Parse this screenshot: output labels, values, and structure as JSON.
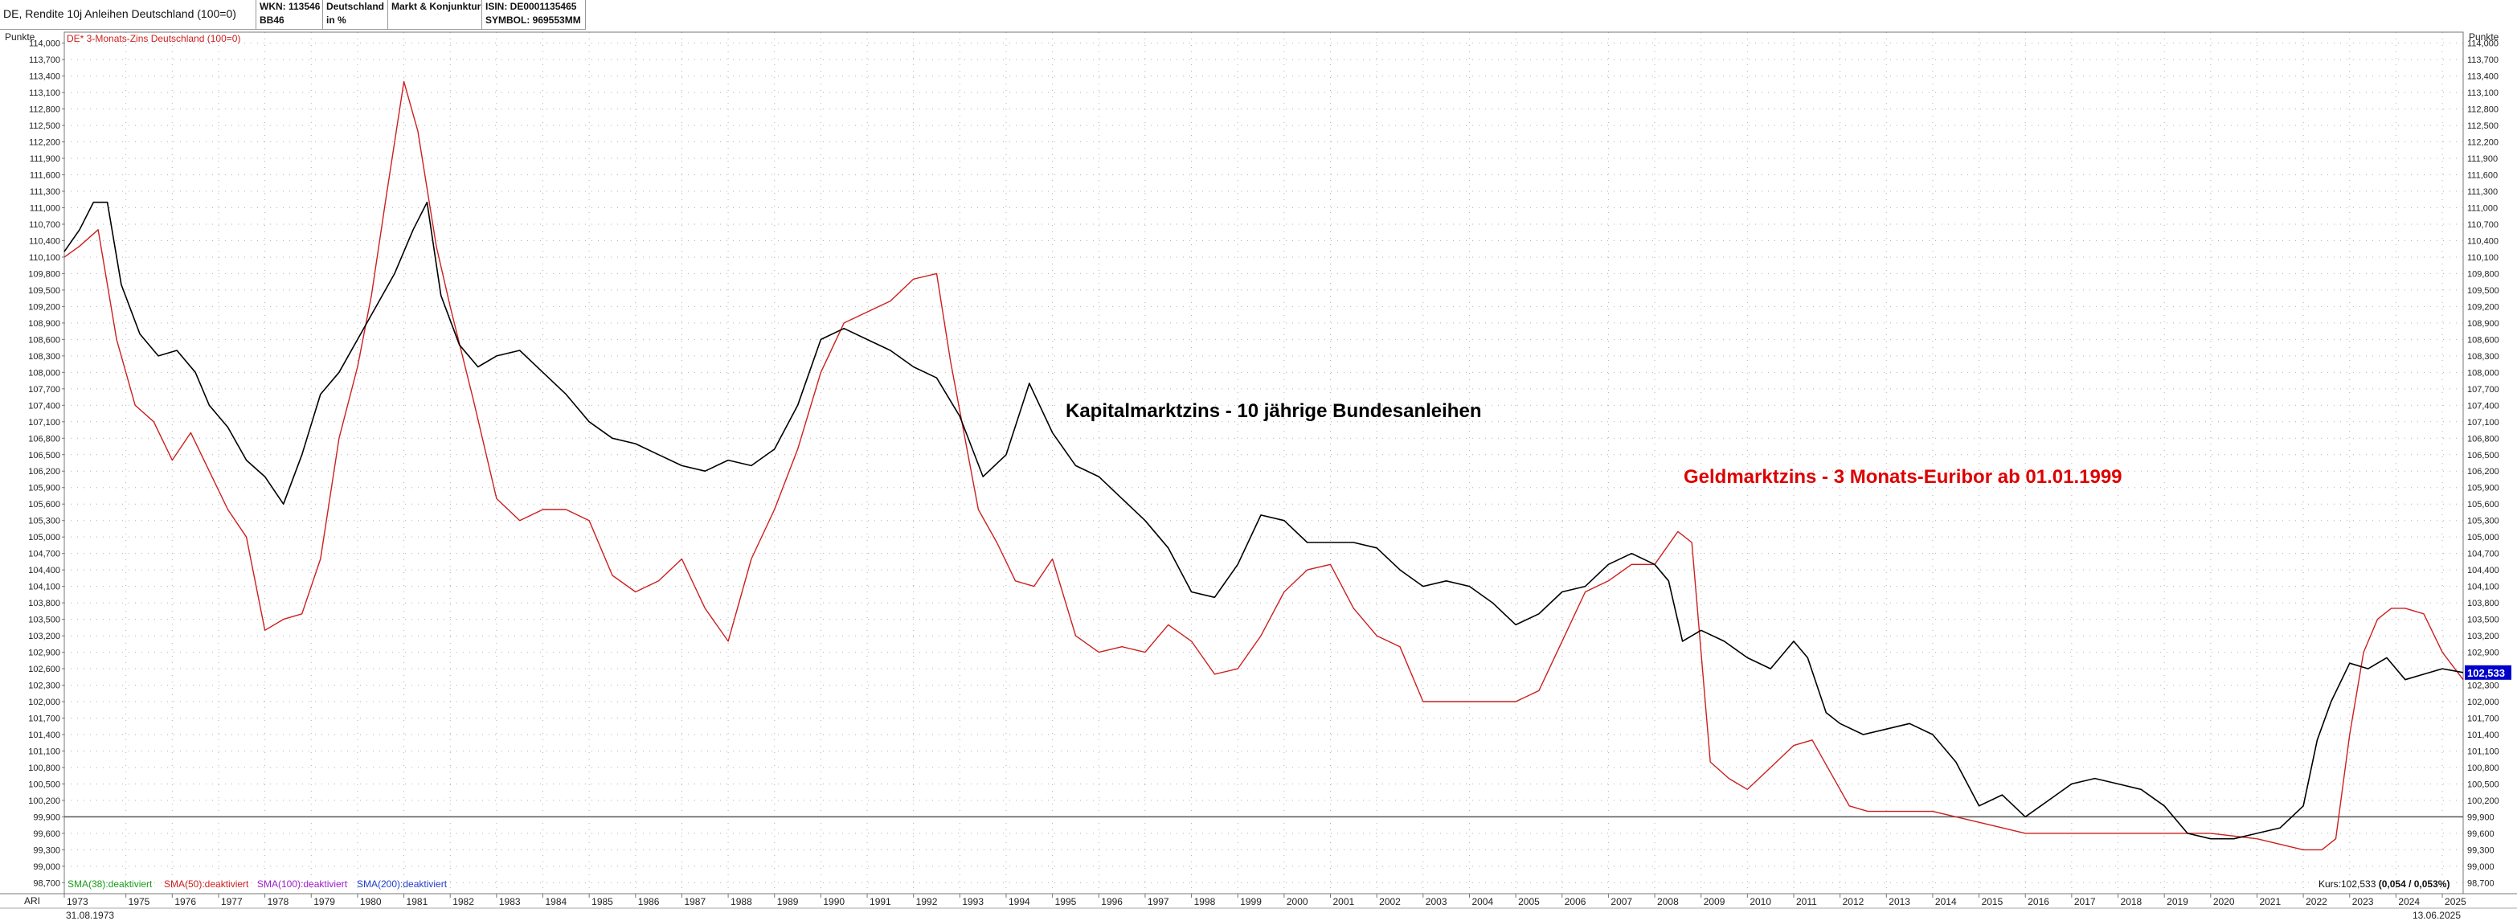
{
  "header": {
    "title": "DE, Rendite 10j Anleihen Deutschland (100=0)",
    "wkn": "WKN: 113546",
    "code": "BB46",
    "country": "Deutschland",
    "unit": "in %",
    "category": "Markt & Konjunktur",
    "isin": "ISIN: DE0001135465",
    "symbol": "SYMBOL: 969553MM"
  },
  "colors": {
    "kapital": "#000000",
    "geld": "#cc1f1f",
    "price_tag_bg": "#0000cc",
    "grid": "#b0b0b0"
  },
  "chart_data": {
    "type": "line",
    "title": "DE, Rendite 10j Anleihen Deutschland (100=0)",
    "ylabel": "Punkte",
    "ylim": [
      98.5,
      114.2
    ],
    "x_range": [
      1973.67,
      2025.45
    ],
    "grid": true,
    "y_ticks": [
      114.0,
      113.7,
      113.4,
      113.1,
      112.8,
      112.5,
      112.2,
      111.9,
      111.6,
      111.3,
      111.0,
      110.7,
      110.4,
      110.1,
      109.8,
      109.5,
      109.2,
      108.9,
      108.6,
      108.3,
      108.0,
      107.7,
      107.4,
      107.1,
      106.8,
      106.5,
      106.2,
      105.9,
      105.6,
      105.3,
      105.0,
      104.7,
      104.4,
      104.1,
      103.8,
      103.5,
      103.2,
      102.9,
      102.6,
      102.3,
      102.0,
      101.7,
      101.4,
      101.1,
      100.8,
      100.5,
      100.2,
      99.9,
      99.6,
      99.3,
      99.0,
      98.7
    ],
    "y_tick_labels": [
      "114,000",
      "113,700",
      "113,400",
      "113,100",
      "112,800",
      "112,500",
      "112,200",
      "111,900",
      "111,600",
      "111,300",
      "111,000",
      "110,700",
      "110,400",
      "110,100",
      "109,800",
      "109,500",
      "109,200",
      "108,900",
      "108,600",
      "108,300",
      "108,000",
      "107,700",
      "107,400",
      "107,100",
      "106,800",
      "106,500",
      "106,200",
      "105,900",
      "105,600",
      "105,300",
      "105,000",
      "104,700",
      "104,400",
      "104,100",
      "103,800",
      "103,500",
      "103,200",
      "102,900",
      "102,600",
      "102,300",
      "102,000",
      "101,700",
      "101,400",
      "101,100",
      "100,800",
      "100,500",
      "100,200",
      "99,900",
      "99,600",
      "99,300",
      "99,000",
      "98,700"
    ],
    "x_ticks": [
      "1973",
      "1975",
      "1976",
      "1977",
      "1978",
      "1979",
      "1980",
      "1981",
      "1982",
      "1983",
      "1984",
      "1985",
      "1986",
      "1987",
      "1988",
      "1989",
      "1990",
      "1991",
      "1992",
      "1993",
      "1994",
      "1995",
      "1996",
      "1997",
      "1998",
      "1999",
      "2000",
      "2001",
      "2002",
      "2003",
      "2004",
      "2005",
      "2006",
      "2007",
      "2008",
      "2009",
      "2010",
      "2011",
      "2012",
      "2013",
      "2014",
      "2015",
      "2016",
      "2017",
      "2018",
      "2019",
      "2020",
      "2021",
      "2022",
      "2023",
      "2024",
      "2025"
    ],
    "reference_line": 99.9,
    "series": [
      {
        "name": "DE, Rendite 10j Anleihen Deutschland (100=0)",
        "color": "#000000",
        "x": [
          1973.67,
          1974.0,
          1974.3,
          1974.6,
          1974.9,
          1975.3,
          1975.7,
          1976.1,
          1976.5,
          1976.8,
          1977.2,
          1977.6,
          1978.0,
          1978.4,
          1978.8,
          1979.2,
          1979.6,
          1980.0,
          1980.4,
          1980.8,
          1981.2,
          1981.5,
          1981.8,
          1982.2,
          1982.6,
          1983.0,
          1983.5,
          1984.0,
          1984.5,
          1985.0,
          1985.5,
          1986.0,
          1986.5,
          1987.0,
          1987.5,
          1988.0,
          1988.5,
          1989.0,
          1989.5,
          1990.0,
          1990.5,
          1991.0,
          1991.5,
          1992.0,
          1992.5,
          1993.0,
          1993.5,
          1994.0,
          1994.5,
          1995.0,
          1995.5,
          1996.0,
          1996.5,
          1997.0,
          1997.5,
          1998.0,
          1998.5,
          1999.0,
          1999.5,
          2000.0,
          2000.5,
          2001.0,
          2001.5,
          2002.0,
          2002.5,
          2003.0,
          2003.5,
          2004.0,
          2004.5,
          2005.0,
          2005.5,
          2006.0,
          2006.5,
          2007.0,
          2007.5,
          2008.0,
          2008.3,
          2008.6,
          2009.0,
          2009.5,
          2010.0,
          2010.5,
          2011.0,
          2011.3,
          2011.7,
          2012.0,
          2012.5,
          2013.0,
          2013.5,
          2014.0,
          2014.5,
          2015.0,
          2015.5,
          2016.0,
          2016.5,
          2017.0,
          2017.5,
          2018.0,
          2018.5,
          2019.0,
          2019.5,
          2020.0,
          2020.5,
          2021.0,
          2021.5,
          2022.0,
          2022.3,
          2022.6,
          2023.0,
          2023.4,
          2023.8,
          2024.2,
          2024.6,
          2025.0,
          2025.45
        ],
        "values": [
          110.2,
          110.6,
          111.1,
          111.1,
          109.6,
          108.7,
          108.3,
          108.4,
          108.0,
          107.4,
          107.0,
          106.4,
          106.1,
          105.6,
          106.5,
          107.6,
          108.0,
          108.6,
          109.2,
          109.8,
          110.6,
          111.1,
          109.4,
          108.5,
          108.1,
          108.3,
          108.4,
          108.0,
          107.6,
          107.1,
          106.8,
          106.7,
          106.5,
          106.3,
          106.2,
          106.4,
          106.3,
          106.6,
          107.4,
          108.6,
          108.8,
          108.6,
          108.4,
          108.1,
          107.9,
          107.2,
          106.1,
          106.5,
          107.8,
          106.9,
          106.3,
          106.1,
          105.7,
          105.3,
          104.8,
          104.0,
          103.9,
          104.5,
          105.4,
          105.3,
          104.9,
          104.9,
          104.9,
          104.8,
          104.4,
          104.1,
          104.2,
          104.1,
          103.8,
          103.4,
          103.6,
          104.0,
          104.1,
          104.5,
          104.7,
          104.5,
          104.2,
          103.1,
          103.3,
          103.1,
          102.8,
          102.6,
          103.1,
          102.8,
          101.8,
          101.6,
          101.4,
          101.5,
          101.6,
          101.4,
          100.9,
          100.1,
          100.3,
          99.9,
          100.2,
          100.5,
          100.6,
          100.5,
          100.4,
          100.1,
          99.6,
          99.5,
          99.5,
          99.6,
          99.7,
          100.1,
          101.3,
          102.0,
          102.7,
          102.6,
          102.8,
          102.4,
          102.5,
          102.6,
          102.53
        ]
      },
      {
        "name": "DE* 3-Monats-Zins Deutschland (100=0)",
        "color": "#cc1f1f",
        "x": [
          1973.67,
          1974.0,
          1974.4,
          1974.8,
          1975.2,
          1975.6,
          1976.0,
          1976.4,
          1976.8,
          1977.2,
          1977.6,
          1978.0,
          1978.4,
          1978.8,
          1979.2,
          1979.6,
          1980.0,
          1980.3,
          1980.6,
          1981.0,
          1981.3,
          1981.7,
          1982.0,
          1982.5,
          1983.0,
          1983.5,
          1984.0,
          1984.5,
          1985.0,
          1985.5,
          1986.0,
          1986.5,
          1987.0,
          1987.5,
          1988.0,
          1988.5,
          1989.0,
          1989.5,
          1990.0,
          1990.5,
          1991.0,
          1991.5,
          1992.0,
          1992.5,
          1992.8,
          1993.0,
          1993.4,
          1993.8,
          1994.2,
          1994.6,
          1995.0,
          1995.5,
          1996.0,
          1996.5,
          1997.0,
          1997.5,
          1998.0,
          1998.5,
          1999.0,
          1999.5,
          2000.0,
          2000.5,
          2001.0,
          2001.5,
          2002.0,
          2002.5,
          2003.0,
          2003.5,
          2004.0,
          2004.5,
          2005.0,
          2005.5,
          2006.0,
          2006.5,
          2007.0,
          2007.5,
          2008.0,
          2008.5,
          2008.8,
          2009.2,
          2009.6,
          2010.0,
          2010.5,
          2011.0,
          2011.4,
          2011.8,
          2012.2,
          2012.6,
          2013.0,
          2014.0,
          2015.0,
          2016.0,
          2017.0,
          2018.0,
          2019.0,
          2020.0,
          2021.0,
          2022.0,
          2022.4,
          2022.7,
          2023.0,
          2023.3,
          2023.6,
          2023.9,
          2024.2,
          2024.6,
          2025.0,
          2025.45
        ],
        "values": [
          110.1,
          110.3,
          110.6,
          108.6,
          107.4,
          107.1,
          106.4,
          106.9,
          106.2,
          105.5,
          105.0,
          103.3,
          103.5,
          103.6,
          104.6,
          106.8,
          108.1,
          109.4,
          111.1,
          113.3,
          112.4,
          110.3,
          109.2,
          107.5,
          105.7,
          105.3,
          105.5,
          105.5,
          105.3,
          104.3,
          104.0,
          104.2,
          104.6,
          103.7,
          103.1,
          104.6,
          105.5,
          106.6,
          108.0,
          108.9,
          109.1,
          109.3,
          109.7,
          109.8,
          108.2,
          107.3,
          105.5,
          104.9,
          104.2,
          104.1,
          104.6,
          103.2,
          102.9,
          103.0,
          102.9,
          103.4,
          103.1,
          102.5,
          102.6,
          103.2,
          104.0,
          104.4,
          104.5,
          103.7,
          103.2,
          103.0,
          102.0,
          102.0,
          102.0,
          102.0,
          102.0,
          102.2,
          103.1,
          104.0,
          104.2,
          104.5,
          104.5,
          105.1,
          104.9,
          100.9,
          100.6,
          100.4,
          100.8,
          101.2,
          101.3,
          100.7,
          100.1,
          100.0,
          100.0,
          100.0,
          99.8,
          99.6,
          99.6,
          99.6,
          99.6,
          99.6,
          99.5,
          99.3,
          99.3,
          99.5,
          101.4,
          102.9,
          103.5,
          103.7,
          103.7,
          103.6,
          102.9,
          102.4
        ]
      }
    ],
    "annotations": [
      {
        "text": "Kapitalmarktzins - 10 jährige Bundesanleihen",
        "color": "#000000"
      },
      {
        "text": "Geldmarktzins - 3 Monats-Euribor ab 01.01.1999",
        "color": "#dd0000"
      }
    ],
    "last_value_label": "102,533"
  },
  "legend": {
    "line2": "DE* 3-Monats-Zins Deutschland (100=0)"
  },
  "indicators": [
    {
      "label": "SMA(38):deaktiviert",
      "color": "#1a9e1a"
    },
    {
      "label": "SMA(50):deaktiviert",
      "color": "#cc1f1f"
    },
    {
      "label": "SMA(100):deaktiviert",
      "color": "#9c1fcc"
    },
    {
      "label": "SMA(200):deaktiviert",
      "color": "#1f3fcc"
    }
  ],
  "axis": {
    "left_title": "Punkte",
    "right_title": "Punkte",
    "bottom_left": "ARI",
    "start_date": "31.08.1973",
    "end_date": "13.06.2025"
  },
  "kurs": {
    "prefix": "Kurs:102,533 ",
    "change": "(0,054 / 0,053%)"
  }
}
